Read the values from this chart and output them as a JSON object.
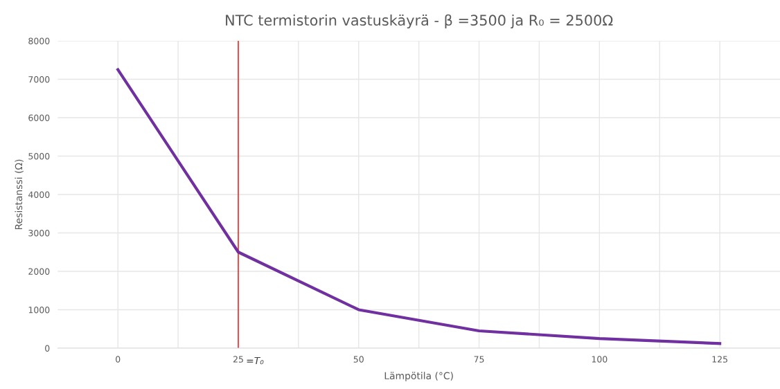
{
  "chart_data": {
    "type": "line",
    "title": "NTC termistorin vastuskäyrä - β =3500 ja R₀ = 2500Ω",
    "xlabel": "Lämpötila (°C)",
    "ylabel": "Resistanssi (Ω)",
    "x": [
      0,
      25,
      50,
      75,
      100,
      125
    ],
    "series": [
      {
        "color": "#7030a0",
        "values": [
          7250,
          2500,
          1000,
          450,
          250,
          120
        ]
      }
    ],
    "xlim": [
      -12.5,
      137.5
    ],
    "xticks": [
      0,
      {
        "value": 12.5,
        "label": null
      },
      25,
      {
        "value": 37.5,
        "label": null
      },
      50,
      {
        "value": 62.5,
        "label": null
      },
      75,
      {
        "value": 87.5,
        "label": null
      },
      100,
      {
        "value": 112.5,
        "label": null
      },
      125
    ],
    "ylim": [
      0,
      8000
    ],
    "yticks": [
      0,
      1000,
      2000,
      3000,
      4000,
      5000,
      6000,
      7000,
      8000
    ],
    "grid": true,
    "marker": "none",
    "line_style": "solid",
    "ref_lines": [
      {
        "axis": "x",
        "value": 25,
        "color": "#ff0000"
      }
    ],
    "annotations": [
      {
        "text": "=T₀",
        "x": 25,
        "y": 0
      }
    ]
  }
}
